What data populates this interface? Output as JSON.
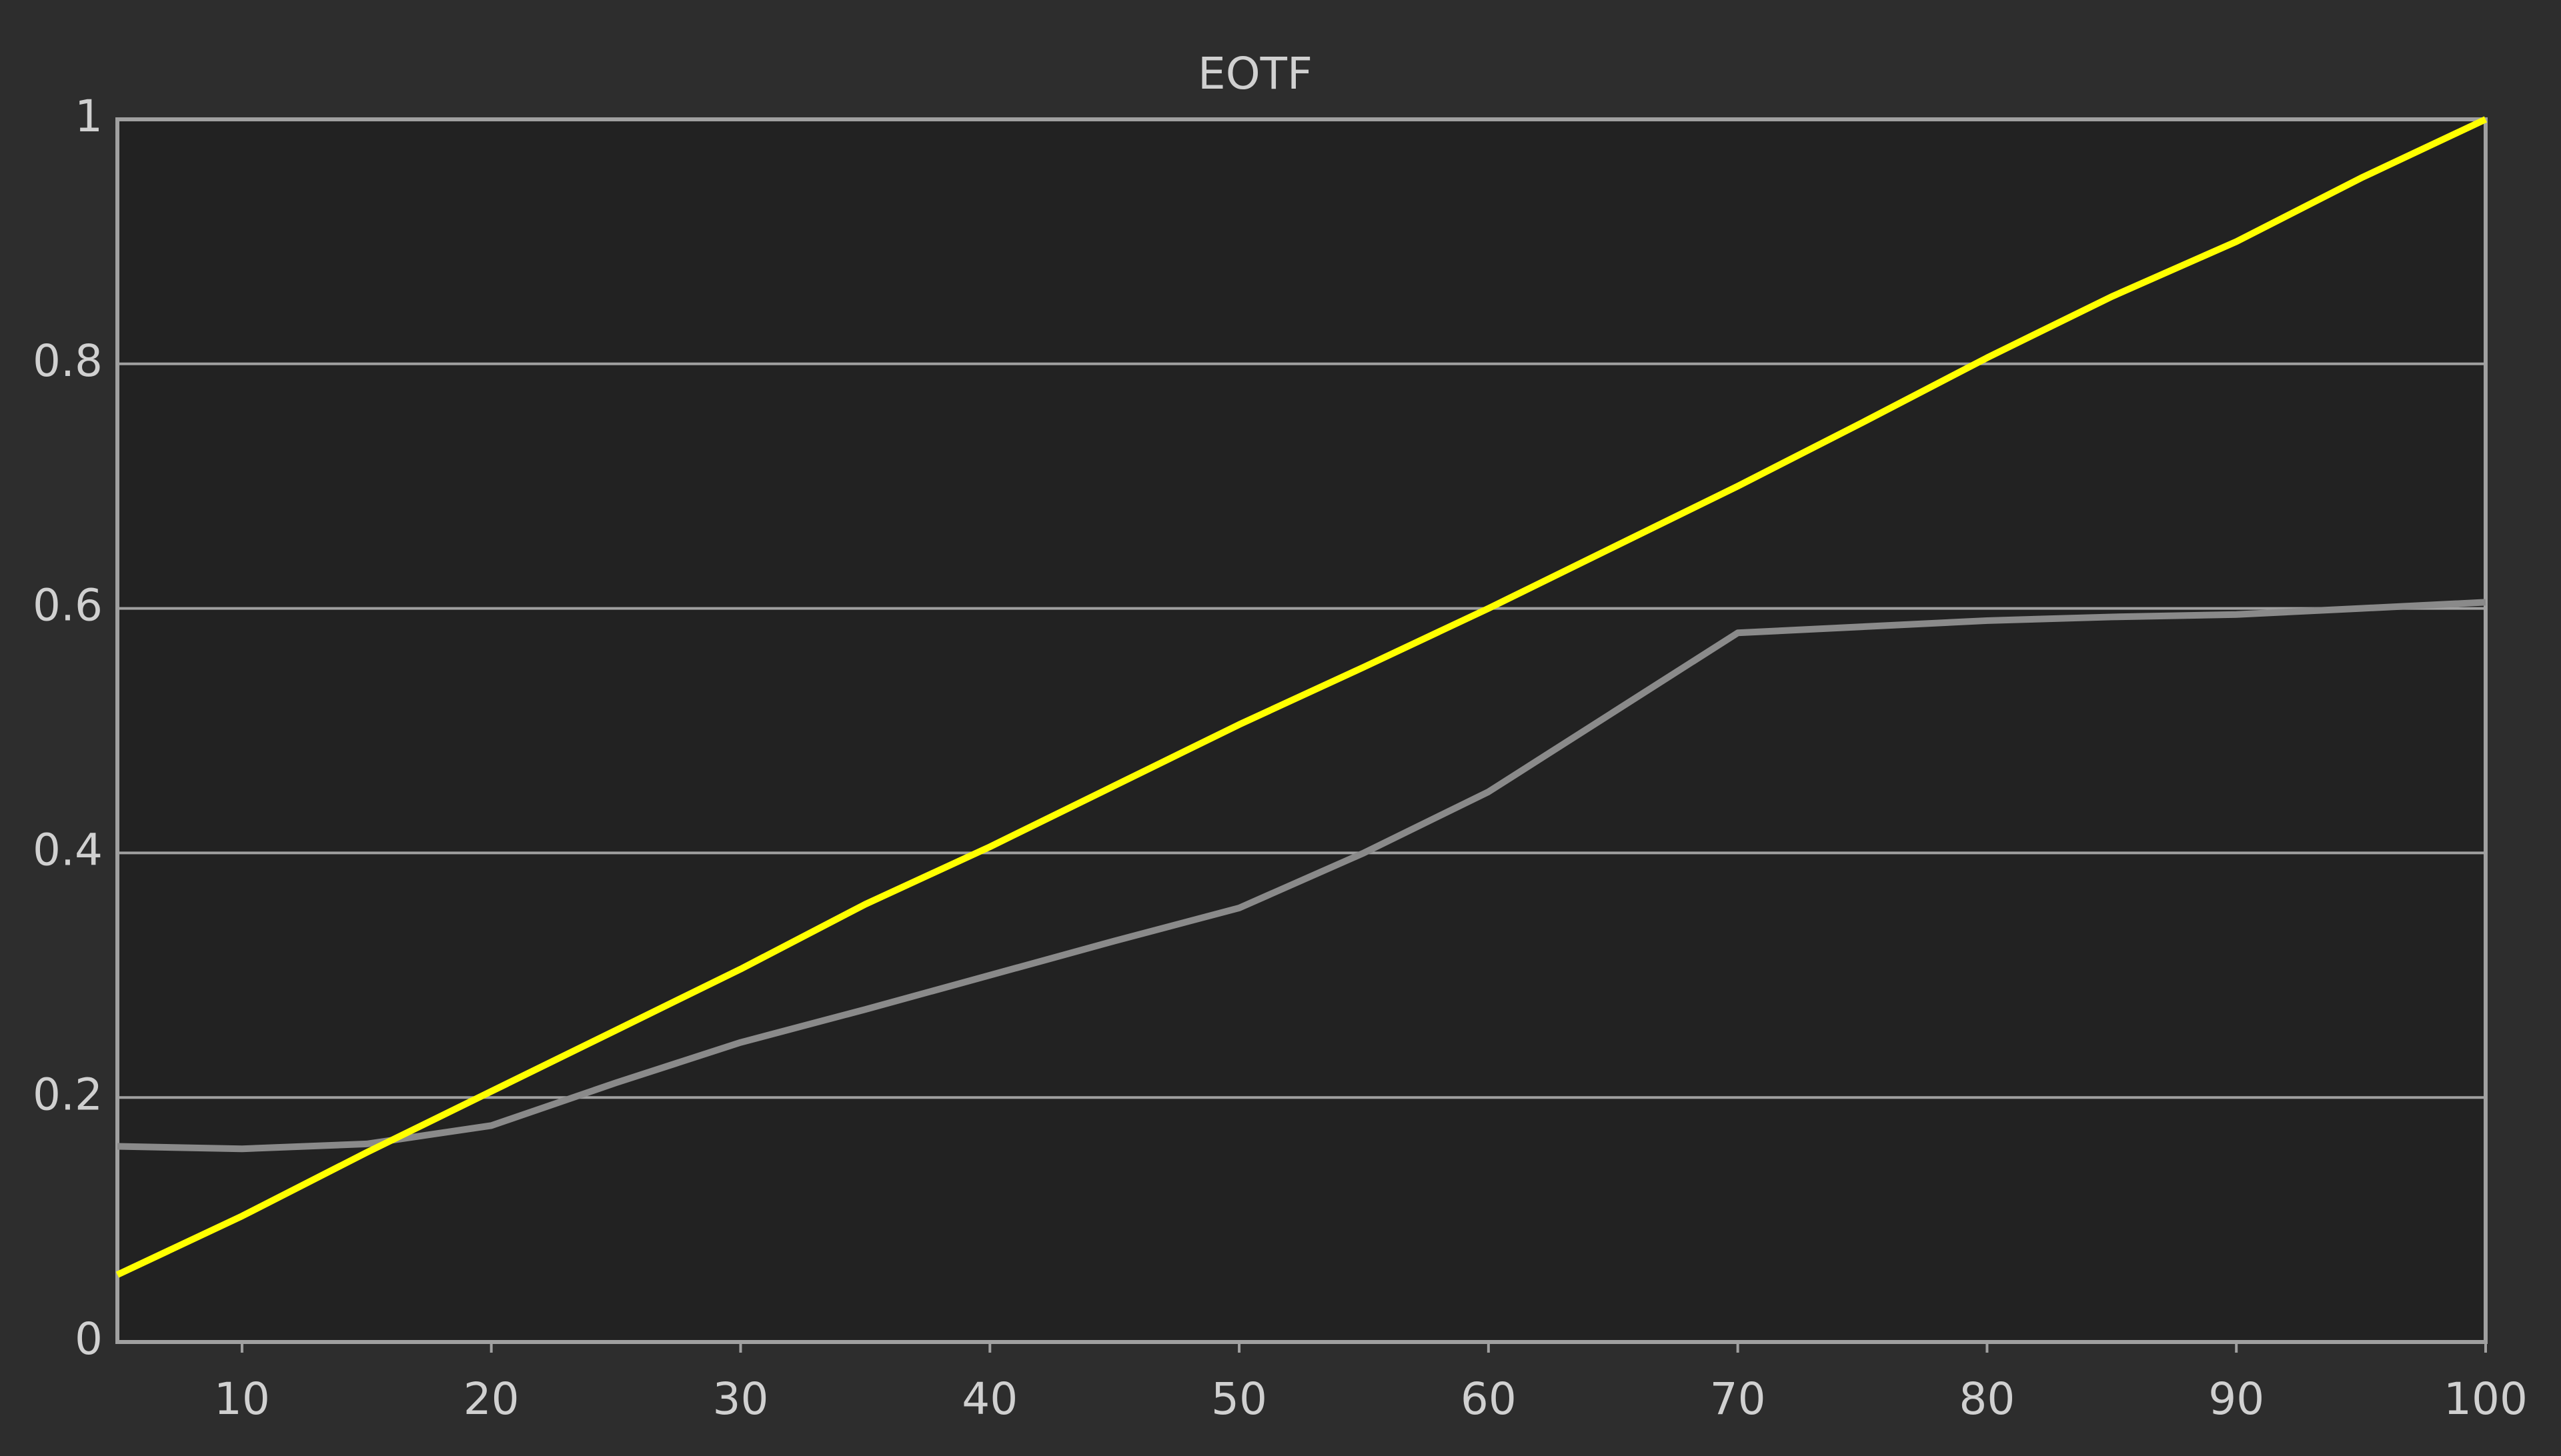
{
  "chart_data": {
    "type": "line",
    "title": "EOTF",
    "x": [
      5,
      10,
      15,
      20,
      25,
      30,
      35,
      40,
      45,
      50,
      55,
      60,
      65,
      70,
      75,
      80,
      85,
      90,
      95,
      100
    ],
    "series": [
      {
        "color": "#8a8a8a",
        "values": [
          0.16,
          0.158,
          0.162,
          0.177,
          0.212,
          0.245,
          0.272,
          0.3,
          0.328,
          0.355,
          0.4,
          0.45,
          0.515,
          0.58,
          0.585,
          0.59,
          0.593,
          0.595,
          0.6,
          0.605
        ]
      },
      {
        "color": "#ffff00",
        "values": [
          0.055,
          0.103,
          0.155,
          0.205,
          0.255,
          0.305,
          0.358,
          0.405,
          0.455,
          0.505,
          0.552,
          0.6,
          0.65,
          0.7,
          0.752,
          0.805,
          0.855,
          0.9,
          0.952,
          1.0
        ]
      }
    ],
    "xlim": [
      5,
      100
    ],
    "xticks": [
      10,
      20,
      30,
      40,
      50,
      60,
      70,
      80,
      90,
      100
    ],
    "ylim": [
      0,
      1
    ],
    "yticks": [
      0,
      0.2,
      0.4,
      0.6,
      0.8,
      1
    ],
    "grid": true
  }
}
